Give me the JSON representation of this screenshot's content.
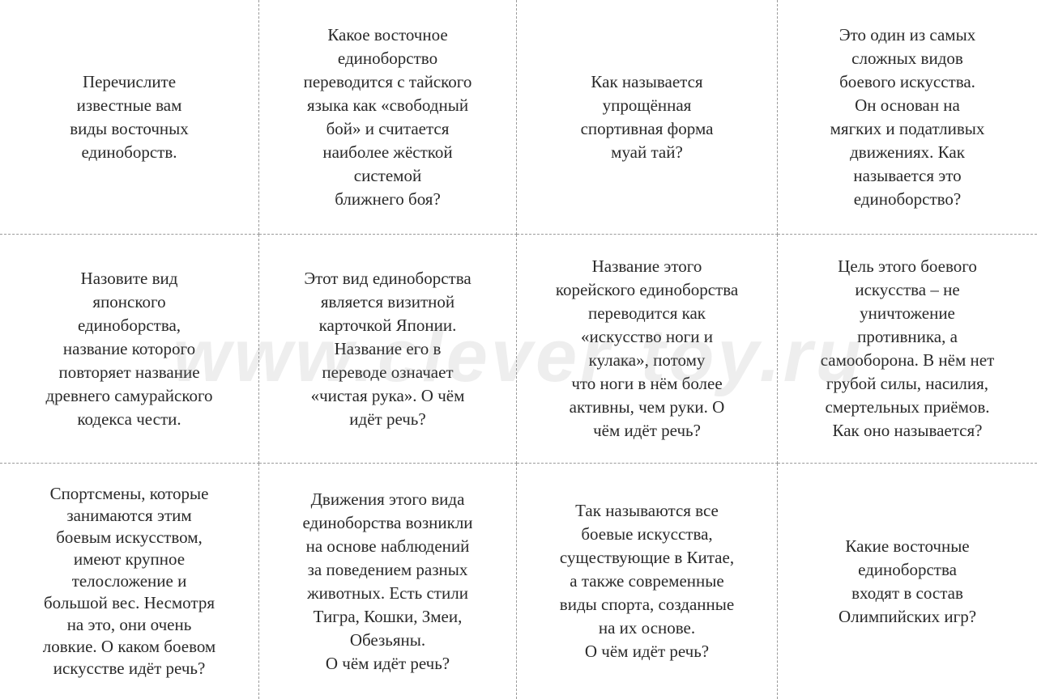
{
  "watermark": "www.clever-toy.ru",
  "cards": [
    [
      "Перечислите",
      "известные вам",
      "виды восточных",
      "единоборств."
    ],
    [
      "Какое восточное",
      "единоборство",
      "переводится с тайского",
      "языка как «свободный",
      "бой» и считается",
      "наиболее жёсткой",
      "системой",
      "ближнего боя?"
    ],
    [
      "Как называется",
      "упрощённая",
      "спортивная форма",
      "муай тай?"
    ],
    [
      "Это один из самых",
      "сложных видов",
      "боевого искусства.",
      "Он основан на",
      "мягких и податливых",
      "движениях. Как",
      "называется это",
      "единоборство?"
    ],
    [
      "Назовите вид",
      "японского",
      "единоборства,",
      "название которого",
      "повторяет название",
      "древнего самурайского",
      "кодекса чести."
    ],
    [
      "Этот вид единоборства",
      "является визитной",
      "карточкой Японии.",
      "Название его в",
      "переводе означает",
      "«чистая рука». О чём",
      "идёт речь?"
    ],
    [
      "Название этого",
      "корейского единоборства",
      "переводится как",
      "«искусство ноги и",
      "кулака», потому",
      "что ноги в нём более",
      "активны, чем руки. О",
      "чём идёт речь?"
    ],
    [
      "Цель этого боевого",
      "искусства – не",
      "уничтожение",
      "противника, а",
      "самооборона. В нём нет",
      "грубой силы, насилия,",
      "смертельных приёмов.",
      "Как оно называется?"
    ],
    [
      "Спортсмены, которые",
      "занимаются этим",
      "боевым искусством,",
      "имеют крупное",
      "телосложение и",
      "большой вес. Несмотря",
      "на это, они очень",
      "ловкие. О каком боевом",
      "искусстве идёт речь?"
    ],
    [
      "Движения этого вида",
      "единоборства возникли",
      "на основе наблюдений",
      "за поведением разных",
      "животных. Есть стили",
      "Тигра, Кошки, Змеи,",
      "Обезьяны.",
      "О чём идёт речь?"
    ],
    [
      "Так называются все",
      "боевые искусства,",
      "существующие в Китае,",
      "а также современные",
      "виды спорта, созданные",
      "на их основе.",
      "О чём идёт речь?"
    ],
    [
      "Какие восточные",
      "единоборства",
      "входят в состав",
      "Олимпийских игр?"
    ]
  ]
}
